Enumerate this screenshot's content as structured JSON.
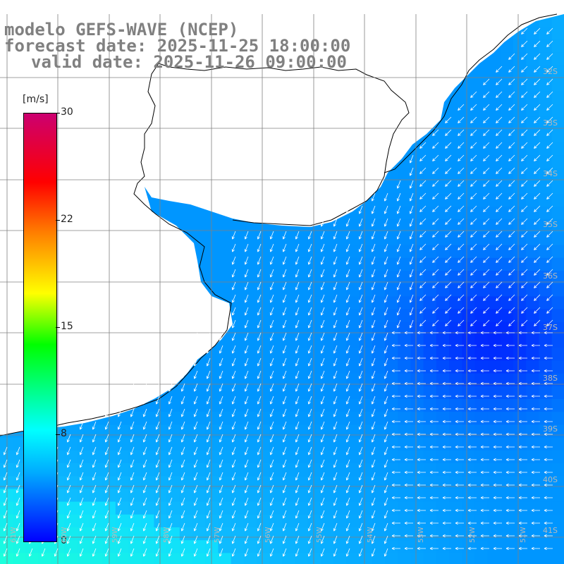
{
  "title": {
    "line1": "modelo GEFS-WAVE (NCEP)",
    "line2": "forecast date: 2025-11-25 18:00:00",
    "line3": "valid date: 2025-11-26 09:00:00"
  },
  "colorbar": {
    "unit": "[m/s]",
    "ticks": [
      "30",
      "22",
      "15",
      "8",
      "0"
    ],
    "tick_values": [
      30,
      22,
      15,
      8,
      0
    ],
    "range": [
      0,
      30
    ],
    "colors": [
      "#0000ff",
      "#00aaff",
      "#00ffff",
      "#00ff00",
      "#ffff00",
      "#ff8000",
      "#ff0000",
      "#cc0070"
    ]
  },
  "map": {
    "land_color": "#ffffff",
    "coast_color": "#000000",
    "grid_color": "#808080",
    "arrow_color": "#ffffff",
    "lat_labels": [
      "32S",
      "33S",
      "34S",
      "35S",
      "36S",
      "37S",
      "38S",
      "39S",
      "40S",
      "41S"
    ],
    "lon_labels": [
      "61W",
      "60W",
      "59W",
      "58W",
      "57W",
      "56W",
      "55W",
      "54W",
      "53W",
      "52W",
      "51W"
    ]
  }
}
